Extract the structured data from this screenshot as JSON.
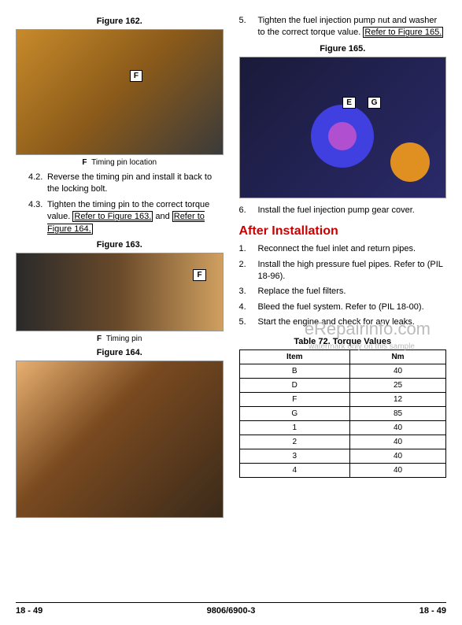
{
  "left": {
    "fig162": {
      "title": "Figure 162.",
      "label": "F",
      "caption_letter": "F",
      "caption_text": "Timing pin location"
    },
    "sub42_num": "4.2.",
    "sub42_txt": "Reverse the timing pin and install it back to the locking bolt.",
    "sub43_num": "4.3.",
    "sub43_txt_a": "Tighten the timing pin to the correct torque value.",
    "sub43_ref1": "Refer to Figure 163.",
    "sub43_mid": " and ",
    "sub43_ref2": "Refer to Figure 164.",
    "fig163": {
      "title": "Figure 163.",
      "label": "F",
      "caption_letter": "F",
      "caption_text": "Timing pin"
    },
    "fig164": {
      "title": "Figure 164."
    }
  },
  "right": {
    "step5_num": "5.",
    "step5_txt_a": "Tighten the fuel injection pump nut and washer to the correct torque value. ",
    "step5_ref": "Refer to Figure 165.",
    "fig165": {
      "title": "Figure 165.",
      "labelE": "E",
      "labelG": "G"
    },
    "step6_num": "6.",
    "step6_txt": "Install the fuel injection pump gear cover.",
    "section": "After Installation",
    "after": [
      {
        "num": "1.",
        "txt": "Reconnect the fuel inlet and return pipes."
      },
      {
        "num": "2.",
        "txt": "Install the high pressure fuel pipes. Refer to (PIL 18-96)."
      },
      {
        "num": "3.",
        "txt": "Replace the fuel filters."
      },
      {
        "num": "4.",
        "txt": "Bleed the fuel system. Refer to (PIL 18-00)."
      },
      {
        "num": "5.",
        "txt": "Start the engine and check for any leaks."
      }
    ],
    "table_title": "Table 72. Torque Values",
    "table_headers": [
      "Item",
      "Nm"
    ],
    "table_rows": [
      [
        "B",
        "40"
      ],
      [
        "D",
        "25"
      ],
      [
        "F",
        "12"
      ],
      [
        "G",
        "85"
      ],
      [
        "1",
        "40"
      ],
      [
        "2",
        "40"
      ],
      [
        "3",
        "40"
      ],
      [
        "4",
        "40"
      ]
    ]
  },
  "watermark": "eRepairinfo.com",
  "watermark_sub": "watermark only on this sample",
  "footer": {
    "left": "18 - 49",
    "mid": "9806/6900-3",
    "right": "18 - 49"
  }
}
